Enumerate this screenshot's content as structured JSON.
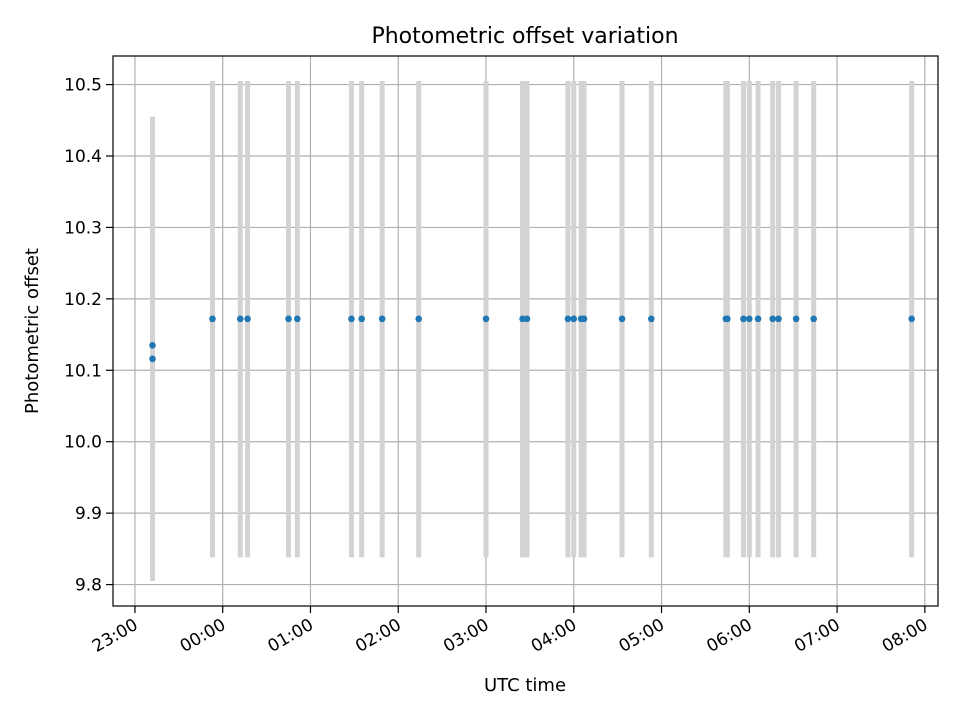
{
  "chart_data": {
    "type": "scatter",
    "title": "Photometric offset variation",
    "xlabel": "UTC time",
    "ylabel": "Photometric offset",
    "x_ticks": [
      "23:00",
      "00:00",
      "01:00",
      "02:00",
      "03:00",
      "04:00",
      "05:00",
      "06:00",
      "07:00",
      "08:00"
    ],
    "y_ticks": [
      "9.8",
      "9.9",
      "10.0",
      "10.1",
      "10.2",
      "10.3",
      "10.4",
      "10.5"
    ],
    "xlim": [
      "22:45",
      "08:09"
    ],
    "ylim": [
      9.77,
      10.54
    ],
    "grid": true,
    "marker_color": "#1f77b4",
    "errorbar_color": "#d3d3d3",
    "points": [
      {
        "x": "23:12",
        "y": 10.135,
        "err_low": 9.805,
        "err_high": 10.455
      },
      {
        "x": "23:12",
        "y": 10.116,
        "err_low": 9.805,
        "err_high": 10.455
      },
      {
        "x": "23:53",
        "y": 10.172,
        "err_low": 9.838,
        "err_high": 10.505
      },
      {
        "x": "00:12",
        "y": 10.172,
        "err_low": 9.838,
        "err_high": 10.505
      },
      {
        "x": "00:17",
        "y": 10.172,
        "err_low": 9.838,
        "err_high": 10.505
      },
      {
        "x": "00:45",
        "y": 10.172,
        "err_low": 9.838,
        "err_high": 10.505
      },
      {
        "x": "00:51",
        "y": 10.172,
        "err_low": 9.838,
        "err_high": 10.505
      },
      {
        "x": "01:28",
        "y": 10.172,
        "err_low": 9.838,
        "err_high": 10.505
      },
      {
        "x": "01:35",
        "y": 10.172,
        "err_low": 9.838,
        "err_high": 10.505
      },
      {
        "x": "01:49",
        "y": 10.172,
        "err_low": 9.838,
        "err_high": 10.505
      },
      {
        "x": "02:14",
        "y": 10.172,
        "err_low": 9.838,
        "err_high": 10.505
      },
      {
        "x": "03:00",
        "y": 10.172,
        "err_low": 9.838,
        "err_high": 10.505
      },
      {
        "x": "03:25",
        "y": 10.172,
        "err_low": 9.838,
        "err_high": 10.505
      },
      {
        "x": "03:28",
        "y": 10.172,
        "err_low": 9.838,
        "err_high": 10.505
      },
      {
        "x": "03:56",
        "y": 10.172,
        "err_low": 9.838,
        "err_high": 10.505
      },
      {
        "x": "04:00",
        "y": 10.172,
        "err_low": 9.838,
        "err_high": 10.505
      },
      {
        "x": "04:05",
        "y": 10.172,
        "err_low": 9.838,
        "err_high": 10.505
      },
      {
        "x": "04:07",
        "y": 10.172,
        "err_low": 9.838,
        "err_high": 10.505
      },
      {
        "x": "04:33",
        "y": 10.172,
        "err_low": 9.838,
        "err_high": 10.505
      },
      {
        "x": "04:53",
        "y": 10.172,
        "err_low": 9.838,
        "err_high": 10.505
      },
      {
        "x": "05:44",
        "y": 10.172,
        "err_low": 9.838,
        "err_high": 10.505
      },
      {
        "x": "05:45",
        "y": 10.172,
        "err_low": 9.838,
        "err_high": 10.505
      },
      {
        "x": "05:56",
        "y": 10.172,
        "err_low": 9.838,
        "err_high": 10.505
      },
      {
        "x": "06:00",
        "y": 10.172,
        "err_low": 9.838,
        "err_high": 10.505
      },
      {
        "x": "06:06",
        "y": 10.172,
        "err_low": 9.838,
        "err_high": 10.505
      },
      {
        "x": "06:16",
        "y": 10.172,
        "err_low": 9.838,
        "err_high": 10.505
      },
      {
        "x": "06:20",
        "y": 10.172,
        "err_low": 9.838,
        "err_high": 10.505
      },
      {
        "x": "06:32",
        "y": 10.172,
        "err_low": 9.838,
        "err_high": 10.505
      },
      {
        "x": "06:44",
        "y": 10.172,
        "err_low": 9.838,
        "err_high": 10.505
      },
      {
        "x": "07:51",
        "y": 10.172,
        "err_low": 9.838,
        "err_high": 10.505
      }
    ]
  }
}
